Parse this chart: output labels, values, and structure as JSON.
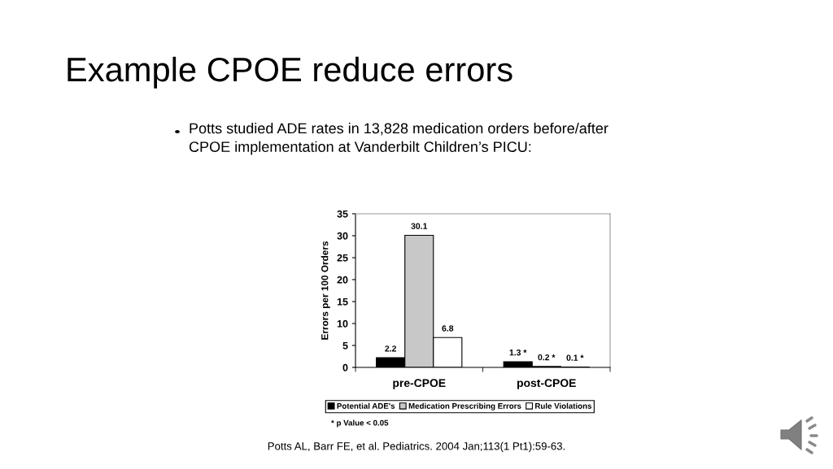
{
  "chart_data": {
    "type": "bar",
    "title": "Example CPOE reduce errors",
    "subtitle": "Potts studied ADE rates in 13,828 medication orders before/after\nCPOE implementation at Vanderbilt Children’s PICU:",
    "ylabel": "Errors per 100 Orders",
    "categories": [
      "pre-CPOE",
      "post-CPOE"
    ],
    "series": [
      {
        "name": "Potential ADE's",
        "color": "#000000",
        "values": [
          2.2,
          1.3
        ],
        "value_labels": [
          "2.2",
          "1.3 *"
        ]
      },
      {
        "name": "Medication Prescribing Errors",
        "color": "#c8c8c8",
        "values": [
          30.1,
          0.2
        ],
        "value_labels": [
          "30.1",
          "0.2 *"
        ]
      },
      {
        "name": "Rule Violations",
        "color": "#ffffff",
        "values": [
          6.8,
          0.1
        ],
        "value_labels": [
          "6.8",
          "0.1 *"
        ]
      }
    ],
    "ylim": [
      0,
      35
    ],
    "yticks": [
      0,
      5,
      10,
      15,
      20,
      25,
      30,
      35
    ],
    "legend": "bottom",
    "annotations": [
      "* p Value < 0.05",
      "Potts AL, Barr FE, et al. Pediatrics. 2004 Jan;113(1 Pt1):59-63."
    ]
  }
}
